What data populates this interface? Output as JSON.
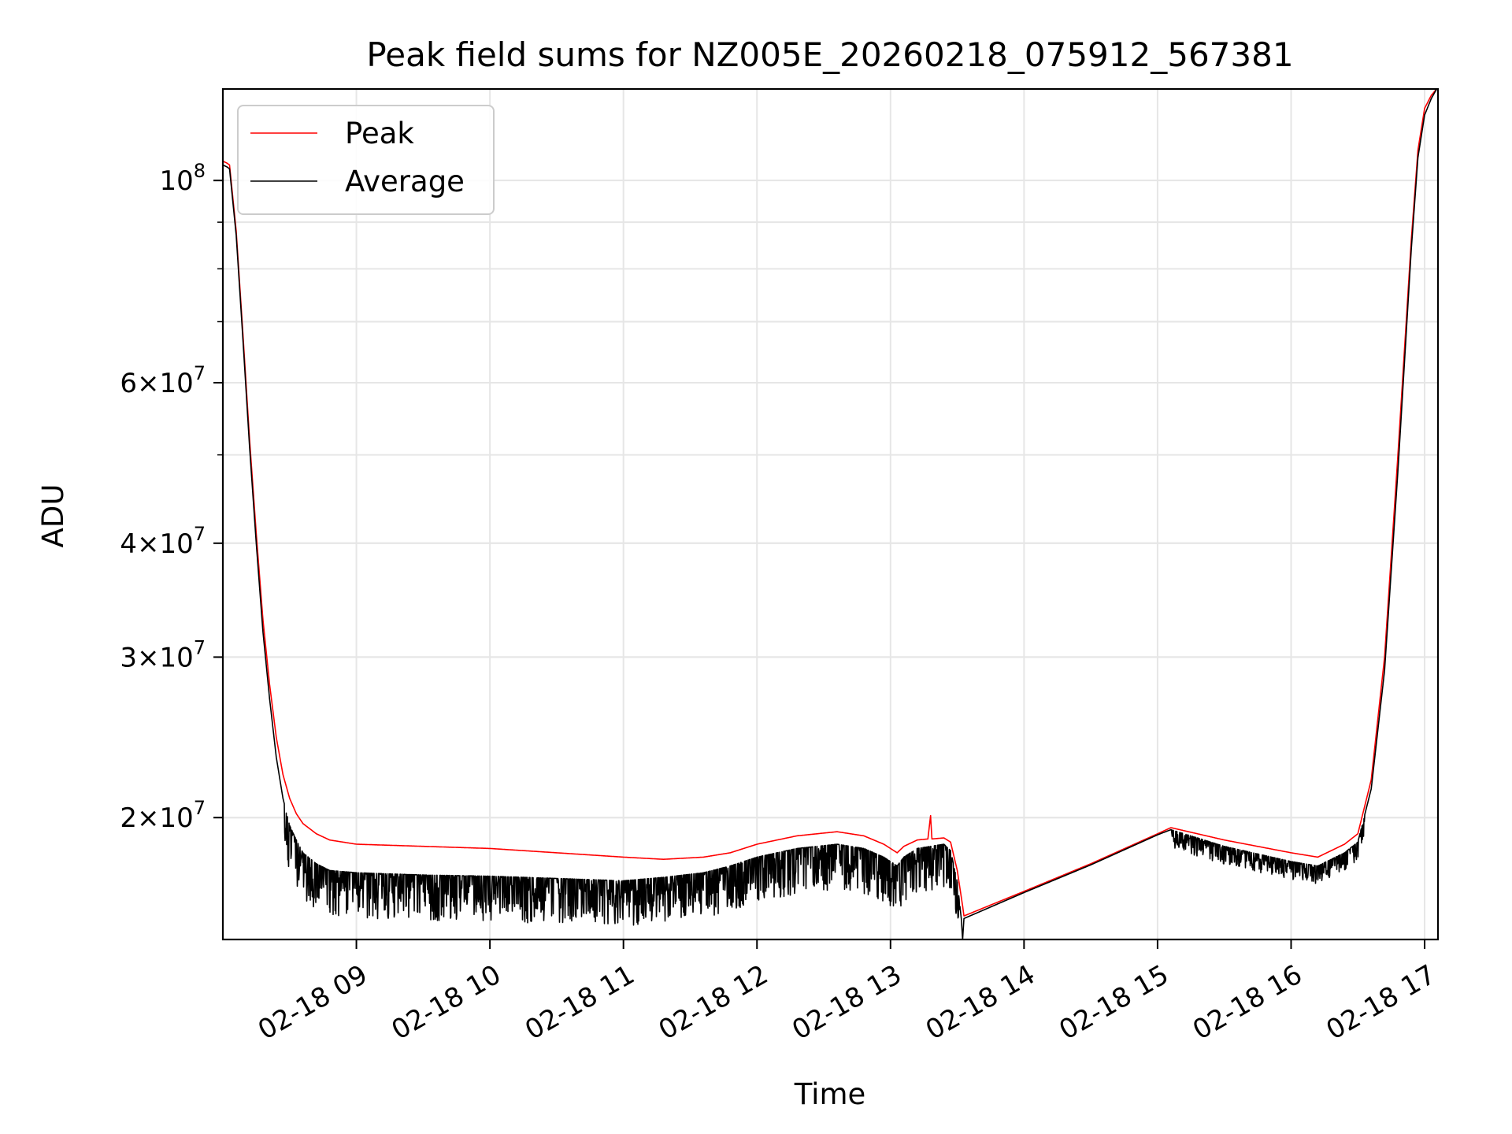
{
  "chart_data": {
    "type": "line",
    "title": "Peak field sums for NZ005E_20260218_075912_567381",
    "xlabel": "Time",
    "ylabel": "ADU",
    "yscale": "log",
    "ylim": [
      14700000,
      126000000
    ],
    "xlim_hours": [
      8.0,
      17.1
    ],
    "grid": true,
    "legend_position": "upper-left",
    "x_ticks": [
      {
        "hour": 9,
        "label": "02-18 09"
      },
      {
        "hour": 10,
        "label": "02-18 10"
      },
      {
        "hour": 11,
        "label": "02-18 11"
      },
      {
        "hour": 12,
        "label": "02-18 12"
      },
      {
        "hour": 13,
        "label": "02-18 13"
      },
      {
        "hour": 14,
        "label": "02-18 14"
      },
      {
        "hour": 15,
        "label": "02-18 15"
      },
      {
        "hour": 16,
        "label": "02-18 16"
      },
      {
        "hour": 17,
        "label": "02-18 17"
      }
    ],
    "y_ticks": [
      {
        "value": 100000000,
        "mantissa": "",
        "exponent": "8"
      },
      {
        "value": 60000000,
        "mantissa": "6",
        "exponent": "7"
      },
      {
        "value": 40000000,
        "mantissa": "4",
        "exponent": "7"
      },
      {
        "value": 30000000,
        "mantissa": "3",
        "exponent": "7"
      },
      {
        "value": 20000000,
        "mantissa": "2",
        "exponent": "7"
      }
    ],
    "y_minor_ticks": [
      20000000,
      30000000,
      40000000,
      50000000,
      60000000,
      70000000,
      80000000,
      90000000
    ],
    "series": [
      {
        "name": "Peak",
        "color": "#ff0000",
        "points": [
          [
            8.0,
            105000000
          ],
          [
            8.03,
            104500000
          ],
          [
            8.05,
            104000000
          ],
          [
            8.1,
            88000000
          ],
          [
            8.15,
            68000000
          ],
          [
            8.2,
            52000000
          ],
          [
            8.25,
            41000000
          ],
          [
            8.3,
            33000000
          ],
          [
            8.35,
            28000000
          ],
          [
            8.4,
            24500000
          ],
          [
            8.45,
            22300000
          ],
          [
            8.5,
            21000000
          ],
          [
            8.55,
            20200000
          ],
          [
            8.6,
            19700000
          ],
          [
            8.7,
            19200000
          ],
          [
            8.8,
            18900000
          ],
          [
            9.0,
            18700000
          ],
          [
            9.5,
            18600000
          ],
          [
            10.0,
            18500000
          ],
          [
            10.5,
            18300000
          ],
          [
            11.0,
            18100000
          ],
          [
            11.3,
            18000000
          ],
          [
            11.6,
            18100000
          ],
          [
            11.8,
            18300000
          ],
          [
            12.0,
            18700000
          ],
          [
            12.3,
            19100000
          ],
          [
            12.6,
            19300000
          ],
          [
            12.8,
            19100000
          ],
          [
            12.95,
            18700000
          ],
          [
            13.05,
            18300000
          ],
          [
            13.1,
            18600000
          ],
          [
            13.2,
            18900000
          ],
          [
            13.28,
            18950000
          ],
          [
            13.3,
            20100000
          ],
          [
            13.31,
            18950000
          ],
          [
            13.4,
            19000000
          ],
          [
            13.45,
            18800000
          ],
          [
            13.5,
            17500000
          ],
          [
            13.54,
            16000000
          ],
          [
            13.55,
            15600000
          ],
          [
            14.0,
            16600000
          ],
          [
            14.5,
            17800000
          ],
          [
            15.0,
            19200000
          ],
          [
            15.1,
            19500000
          ],
          [
            15.5,
            18900000
          ],
          [
            16.0,
            18300000
          ],
          [
            16.2,
            18100000
          ],
          [
            16.4,
            18700000
          ],
          [
            16.5,
            19200000
          ],
          [
            16.6,
            22000000
          ],
          [
            16.7,
            30000000
          ],
          [
            16.8,
            50000000
          ],
          [
            16.9,
            86000000
          ],
          [
            16.95,
            108000000
          ],
          [
            17.0,
            120000000
          ],
          [
            17.05,
            124000000
          ],
          [
            17.09,
            126000000
          ]
        ]
      },
      {
        "name": "Average",
        "color": "#000000",
        "points": [
          [
            8.0,
            104000000
          ],
          [
            8.03,
            103500000
          ],
          [
            8.05,
            103000000
          ],
          [
            8.1,
            87000000
          ],
          [
            8.15,
            67000000
          ],
          [
            8.2,
            51000000
          ],
          [
            8.25,
            40000000
          ],
          [
            8.3,
            32000000
          ],
          [
            8.35,
            27000000
          ],
          [
            8.4,
            23300000
          ],
          [
            8.45,
            21000000
          ],
          [
            8.5,
            19600000
          ],
          [
            8.55,
            18900000
          ],
          [
            8.6,
            18300000
          ],
          [
            8.7,
            17800000
          ],
          [
            8.8,
            17500000
          ],
          [
            9.0,
            17400000
          ],
          [
            9.5,
            17300000
          ],
          [
            10.0,
            17250000
          ],
          [
            10.5,
            17150000
          ],
          [
            11.0,
            17050000
          ],
          [
            11.3,
            17200000
          ],
          [
            11.6,
            17400000
          ],
          [
            11.8,
            17700000
          ],
          [
            12.0,
            18100000
          ],
          [
            12.3,
            18500000
          ],
          [
            12.6,
            18700000
          ],
          [
            12.8,
            18500000
          ],
          [
            12.95,
            18100000
          ],
          [
            13.05,
            17700000
          ],
          [
            13.1,
            18100000
          ],
          [
            13.2,
            18500000
          ],
          [
            13.3,
            18600000
          ],
          [
            13.4,
            18700000
          ],
          [
            13.45,
            18400000
          ],
          [
            13.5,
            17000000
          ],
          [
            13.53,
            15500000
          ],
          [
            13.54,
            14700000
          ],
          [
            13.55,
            15500000
          ],
          [
            14.0,
            16550000
          ],
          [
            14.5,
            17750000
          ],
          [
            15.0,
            19150000
          ],
          [
            15.1,
            19400000
          ],
          [
            15.5,
            18600000
          ],
          [
            16.0,
            17900000
          ],
          [
            16.2,
            17700000
          ],
          [
            16.4,
            18300000
          ],
          [
            16.5,
            18800000
          ],
          [
            16.6,
            21500000
          ],
          [
            16.7,
            29000000
          ],
          [
            16.8,
            48000000
          ],
          [
            16.9,
            84000000
          ],
          [
            16.95,
            106000000
          ],
          [
            17.0,
            118000000
          ],
          [
            17.05,
            123000000
          ],
          [
            17.09,
            126000000
          ]
        ],
        "noise_segments": [
          [
            8.45,
            13.52,
            0.05,
            11
          ],
          [
            15.1,
            16.55,
            0.02,
            7
          ]
        ]
      }
    ]
  }
}
